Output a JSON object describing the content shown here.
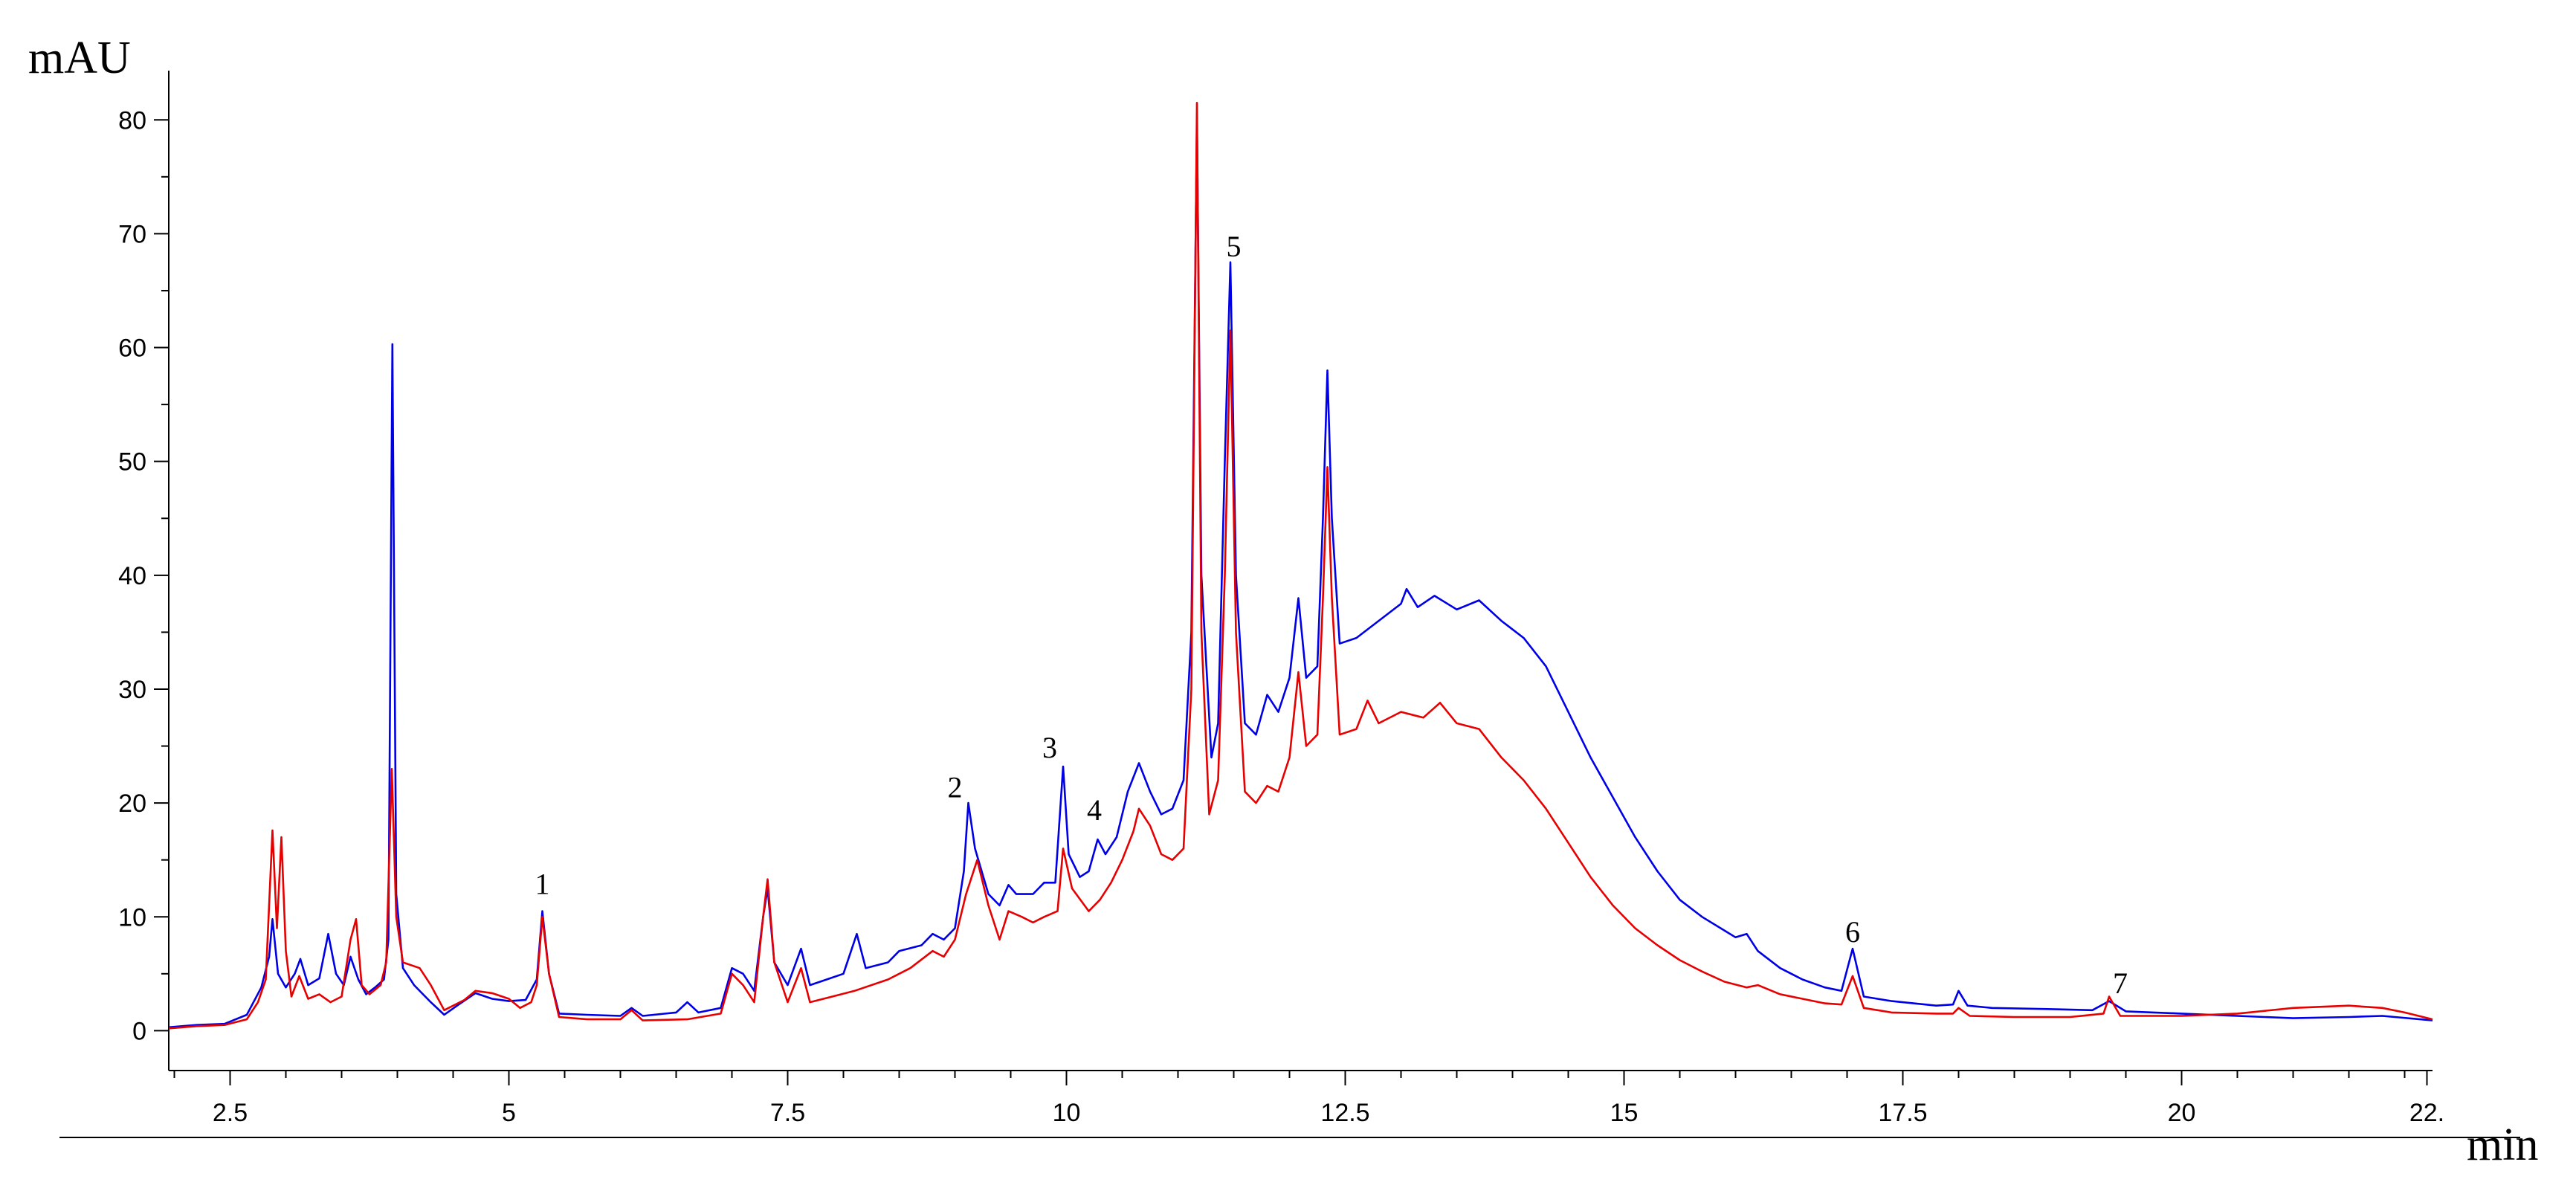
{
  "chart_data": {
    "type": "line",
    "title": "",
    "ylabel": "mAU",
    "xlabel": "min",
    "xlim": [
      1.95,
      22.25
    ],
    "ylim": [
      -3.5,
      84
    ],
    "grid": false,
    "x_ticks": [
      {
        "value": 2.5,
        "label": "2.5"
      },
      {
        "value": 5,
        "label": "5"
      },
      {
        "value": 7.5,
        "label": "7.5"
      },
      {
        "value": 10,
        "label": "10"
      },
      {
        "value": 12.5,
        "label": "12.5"
      },
      {
        "value": 15,
        "label": "15"
      },
      {
        "value": 17.5,
        "label": "17.5"
      },
      {
        "value": 20,
        "label": "20"
      },
      {
        "value": 22.2,
        "label": "22."
      }
    ],
    "y_ticks": [
      {
        "value": 0,
        "label": "0"
      },
      {
        "value": 10,
        "label": "10"
      },
      {
        "value": 20,
        "label": "20"
      },
      {
        "value": 30,
        "label": "30"
      },
      {
        "value": 40,
        "label": "40"
      },
      {
        "value": 50,
        "label": "50"
      },
      {
        "value": 60,
        "label": "60"
      },
      {
        "value": 70,
        "label": "70"
      },
      {
        "value": 80,
        "label": "80"
      }
    ],
    "peak_labels": [
      {
        "label": "1",
        "x": 5.3,
        "y": 12.0
      },
      {
        "label": "2",
        "x": 9.0,
        "y": 20.5
      },
      {
        "label": "3",
        "x": 9.85,
        "y": 24.0
      },
      {
        "label": "4",
        "x": 10.25,
        "y": 18.5
      },
      {
        "label": "5",
        "x": 11.5,
        "y": 68.0
      },
      {
        "label": "6",
        "x": 17.05,
        "y": 7.8
      },
      {
        "label": "7",
        "x": 19.45,
        "y": 3.3
      }
    ],
    "series": [
      {
        "color": "#0000e6",
        "points": [
          [
            1.95,
            0.3
          ],
          [
            2.2,
            0.5
          ],
          [
            2.45,
            0.6
          ],
          [
            2.65,
            1.4
          ],
          [
            2.78,
            3.8
          ],
          [
            2.85,
            6.5
          ],
          [
            2.88,
            9.8
          ],
          [
            2.93,
            5.0
          ],
          [
            3.0,
            3.8
          ],
          [
            3.08,
            5.0
          ],
          [
            3.13,
            6.3
          ],
          [
            3.2,
            4.0
          ],
          [
            3.3,
            4.6
          ],
          [
            3.38,
            8.5
          ],
          [
            3.45,
            5.0
          ],
          [
            3.52,
            4.0
          ],
          [
            3.58,
            6.5
          ],
          [
            3.65,
            4.5
          ],
          [
            3.72,
            3.2
          ],
          [
            3.8,
            3.8
          ],
          [
            3.88,
            4.5
          ],
          [
            3.92,
            8.0
          ],
          [
            3.955,
            60.3
          ],
          [
            3.99,
            12.0
          ],
          [
            4.05,
            5.5
          ],
          [
            4.15,
            4.0
          ],
          [
            4.3,
            2.5
          ],
          [
            4.42,
            1.4
          ],
          [
            4.55,
            2.3
          ],
          [
            4.7,
            3.3
          ],
          [
            4.85,
            2.8
          ],
          [
            5.0,
            2.6
          ],
          [
            5.15,
            2.7
          ],
          [
            5.25,
            4.5
          ],
          [
            5.3,
            10.5
          ],
          [
            5.36,
            5.0
          ],
          [
            5.45,
            1.5
          ],
          [
            5.7,
            1.4
          ],
          [
            6.0,
            1.3
          ],
          [
            6.1,
            2.0
          ],
          [
            6.2,
            1.3
          ],
          [
            6.5,
            1.6
          ],
          [
            6.6,
            2.5
          ],
          [
            6.7,
            1.6
          ],
          [
            6.9,
            2.0
          ],
          [
            7.0,
            5.5
          ],
          [
            7.1,
            5.0
          ],
          [
            7.2,
            3.5
          ],
          [
            7.28,
            10.0
          ],
          [
            7.32,
            12.5
          ],
          [
            7.38,
            6.0
          ],
          [
            7.5,
            4.0
          ],
          [
            7.62,
            7.2
          ],
          [
            7.7,
            4.0
          ],
          [
            7.85,
            4.5
          ],
          [
            8.0,
            5.0
          ],
          [
            8.12,
            8.5
          ],
          [
            8.2,
            5.5
          ],
          [
            8.4,
            6.0
          ],
          [
            8.5,
            7.0
          ],
          [
            8.7,
            7.5
          ],
          [
            8.8,
            8.5
          ],
          [
            8.9,
            8.0
          ],
          [
            9.0,
            9.0
          ],
          [
            9.08,
            14.0
          ],
          [
            9.12,
            20.0
          ],
          [
            9.18,
            16.0
          ],
          [
            9.3,
            12.0
          ],
          [
            9.4,
            11.0
          ],
          [
            9.48,
            12.8
          ],
          [
            9.55,
            12.0
          ],
          [
            9.7,
            12.0
          ],
          [
            9.8,
            13.0
          ],
          [
            9.9,
            13.0
          ],
          [
            9.97,
            23.2
          ],
          [
            10.02,
            15.5
          ],
          [
            10.12,
            13.5
          ],
          [
            10.2,
            14.0
          ],
          [
            10.28,
            16.8
          ],
          [
            10.35,
            15.5
          ],
          [
            10.45,
            17.0
          ],
          [
            10.55,
            21.0
          ],
          [
            10.65,
            23.5
          ],
          [
            10.75,
            21.0
          ],
          [
            10.85,
            19.0
          ],
          [
            10.95,
            19.5
          ],
          [
            11.05,
            22.0
          ],
          [
            11.12,
            35.0
          ],
          [
            11.17,
            80.0
          ],
          [
            11.21,
            40.0
          ],
          [
            11.3,
            24.0
          ],
          [
            11.36,
            27.0
          ],
          [
            11.42,
            50.0
          ],
          [
            11.47,
            67.5
          ],
          [
            11.52,
            40.0
          ],
          [
            11.6,
            27.0
          ],
          [
            11.7,
            26.0
          ],
          [
            11.8,
            29.5
          ],
          [
            11.9,
            28.0
          ],
          [
            12.0,
            31.0
          ],
          [
            12.08,
            38.0
          ],
          [
            12.15,
            31.0
          ],
          [
            12.25,
            32.0
          ],
          [
            12.3,
            45.0
          ],
          [
            12.34,
            58.0
          ],
          [
            12.38,
            45.0
          ],
          [
            12.45,
            34.0
          ],
          [
            12.6,
            34.5
          ],
          [
            12.8,
            36.0
          ],
          [
            13.0,
            37.5
          ],
          [
            13.05,
            38.8
          ],
          [
            13.15,
            37.2
          ],
          [
            13.3,
            38.2
          ],
          [
            13.5,
            37.0
          ],
          [
            13.7,
            37.8
          ],
          [
            13.9,
            36.0
          ],
          [
            14.1,
            34.5
          ],
          [
            14.3,
            32.0
          ],
          [
            14.5,
            28.0
          ],
          [
            14.7,
            24.0
          ],
          [
            14.9,
            20.5
          ],
          [
            15.1,
            17.0
          ],
          [
            15.3,
            14.0
          ],
          [
            15.5,
            11.5
          ],
          [
            15.7,
            10.0
          ],
          [
            15.9,
            8.8
          ],
          [
            16.0,
            8.2
          ],
          [
            16.1,
            8.5
          ],
          [
            16.2,
            7.0
          ],
          [
            16.4,
            5.5
          ],
          [
            16.6,
            4.5
          ],
          [
            16.8,
            3.8
          ],
          [
            16.95,
            3.5
          ],
          [
            17.05,
            7.2
          ],
          [
            17.15,
            3.0
          ],
          [
            17.4,
            2.6
          ],
          [
            17.8,
            2.2
          ],
          [
            17.95,
            2.3
          ],
          [
            18.0,
            3.5
          ],
          [
            18.08,
            2.2
          ],
          [
            18.3,
            2.0
          ],
          [
            18.8,
            1.9
          ],
          [
            19.2,
            1.8
          ],
          [
            19.35,
            2.6
          ],
          [
            19.5,
            1.7
          ],
          [
            20.0,
            1.5
          ],
          [
            20.5,
            1.3
          ],
          [
            21.0,
            1.1
          ],
          [
            21.5,
            1.2
          ],
          [
            21.8,
            1.3
          ],
          [
            22.25,
            0.9
          ]
        ]
      },
      {
        "color": "#e60000",
        "points": [
          [
            1.95,
            0.2
          ],
          [
            2.2,
            0.4
          ],
          [
            2.45,
            0.5
          ],
          [
            2.65,
            1.0
          ],
          [
            2.75,
            2.5
          ],
          [
            2.82,
            4.5
          ],
          [
            2.88,
            17.6
          ],
          [
            2.92,
            9.0
          ],
          [
            2.96,
            17.0
          ],
          [
            3.0,
            7.0
          ],
          [
            3.05,
            3.0
          ],
          [
            3.12,
            4.8
          ],
          [
            3.2,
            2.8
          ],
          [
            3.3,
            3.2
          ],
          [
            3.4,
            2.5
          ],
          [
            3.5,
            3.0
          ],
          [
            3.58,
            8.0
          ],
          [
            3.63,
            9.8
          ],
          [
            3.68,
            4.0
          ],
          [
            3.75,
            3.2
          ],
          [
            3.85,
            4.0
          ],
          [
            3.9,
            6.0
          ],
          [
            3.95,
            23.0
          ],
          [
            3.99,
            10.0
          ],
          [
            4.05,
            6.0
          ],
          [
            4.2,
            5.5
          ],
          [
            4.3,
            4.0
          ],
          [
            4.42,
            1.8
          ],
          [
            4.6,
            2.7
          ],
          [
            4.7,
            3.5
          ],
          [
            4.85,
            3.3
          ],
          [
            5.0,
            2.8
          ],
          [
            5.1,
            2.0
          ],
          [
            5.2,
            2.5
          ],
          [
            5.25,
            4.0
          ],
          [
            5.3,
            10.0
          ],
          [
            5.36,
            5.0
          ],
          [
            5.45,
            1.2
          ],
          [
            5.7,
            1.0
          ],
          [
            6.0,
            1.0
          ],
          [
            6.1,
            1.8
          ],
          [
            6.2,
            0.9
          ],
          [
            6.6,
            1.0
          ],
          [
            6.9,
            1.5
          ],
          [
            7.0,
            5.0
          ],
          [
            7.1,
            4.0
          ],
          [
            7.2,
            2.5
          ],
          [
            7.28,
            10.0
          ],
          [
            7.32,
            13.3
          ],
          [
            7.38,
            6.0
          ],
          [
            7.5,
            2.5
          ],
          [
            7.62,
            5.5
          ],
          [
            7.7,
            2.5
          ],
          [
            7.9,
            3.0
          ],
          [
            8.1,
            3.5
          ],
          [
            8.4,
            4.5
          ],
          [
            8.6,
            5.5
          ],
          [
            8.8,
            7.0
          ],
          [
            8.9,
            6.5
          ],
          [
            9.0,
            8.0
          ],
          [
            9.1,
            12.0
          ],
          [
            9.2,
            15.0
          ],
          [
            9.3,
            11.0
          ],
          [
            9.4,
            8.0
          ],
          [
            9.48,
            10.5
          ],
          [
            9.6,
            10.0
          ],
          [
            9.7,
            9.5
          ],
          [
            9.8,
            10.0
          ],
          [
            9.92,
            10.5
          ],
          [
            9.97,
            16.0
          ],
          [
            10.05,
            12.5
          ],
          [
            10.2,
            10.5
          ],
          [
            10.3,
            11.5
          ],
          [
            10.4,
            13.0
          ],
          [
            10.5,
            15.0
          ],
          [
            10.6,
            17.5
          ],
          [
            10.65,
            19.5
          ],
          [
            10.75,
            18.0
          ],
          [
            10.85,
            15.5
          ],
          [
            10.95,
            15.0
          ],
          [
            11.05,
            16.0
          ],
          [
            11.12,
            30.0
          ],
          [
            11.17,
            81.5
          ],
          [
            11.21,
            35.0
          ],
          [
            11.28,
            19.0
          ],
          [
            11.36,
            22.0
          ],
          [
            11.42,
            40.0
          ],
          [
            11.47,
            61.5
          ],
          [
            11.52,
            35.0
          ],
          [
            11.6,
            21.0
          ],
          [
            11.7,
            20.0
          ],
          [
            11.8,
            21.5
          ],
          [
            11.9,
            21.0
          ],
          [
            12.0,
            24.0
          ],
          [
            12.08,
            31.5
          ],
          [
            12.15,
            25.0
          ],
          [
            12.25,
            26.0
          ],
          [
            12.3,
            38.0
          ],
          [
            12.34,
            49.5
          ],
          [
            12.38,
            38.0
          ],
          [
            12.45,
            26.0
          ],
          [
            12.6,
            26.5
          ],
          [
            12.7,
            29.0
          ],
          [
            12.8,
            27.0
          ],
          [
            13.0,
            28.0
          ],
          [
            13.2,
            27.5
          ],
          [
            13.35,
            28.8
          ],
          [
            13.5,
            27.0
          ],
          [
            13.7,
            26.5
          ],
          [
            13.9,
            24.0
          ],
          [
            14.1,
            22.0
          ],
          [
            14.3,
            19.5
          ],
          [
            14.5,
            16.5
          ],
          [
            14.7,
            13.5
          ],
          [
            14.9,
            11.0
          ],
          [
            15.1,
            9.0
          ],
          [
            15.3,
            7.5
          ],
          [
            15.5,
            6.2
          ],
          [
            15.7,
            5.2
          ],
          [
            15.9,
            4.3
          ],
          [
            16.1,
            3.8
          ],
          [
            16.2,
            4.0
          ],
          [
            16.4,
            3.2
          ],
          [
            16.6,
            2.8
          ],
          [
            16.8,
            2.4
          ],
          [
            16.95,
            2.3
          ],
          [
            17.05,
            4.8
          ],
          [
            17.15,
            2.0
          ],
          [
            17.4,
            1.6
          ],
          [
            17.8,
            1.5
          ],
          [
            17.95,
            1.5
          ],
          [
            18.0,
            2.0
          ],
          [
            18.1,
            1.3
          ],
          [
            18.5,
            1.2
          ],
          [
            19.0,
            1.2
          ],
          [
            19.3,
            1.5
          ],
          [
            19.35,
            3.0
          ],
          [
            19.45,
            1.3
          ],
          [
            20.0,
            1.3
          ],
          [
            20.5,
            1.5
          ],
          [
            21.0,
            2.0
          ],
          [
            21.5,
            2.2
          ],
          [
            21.8,
            2.0
          ],
          [
            22.0,
            1.6
          ],
          [
            22.25,
            1.0
          ]
        ]
      }
    ]
  }
}
